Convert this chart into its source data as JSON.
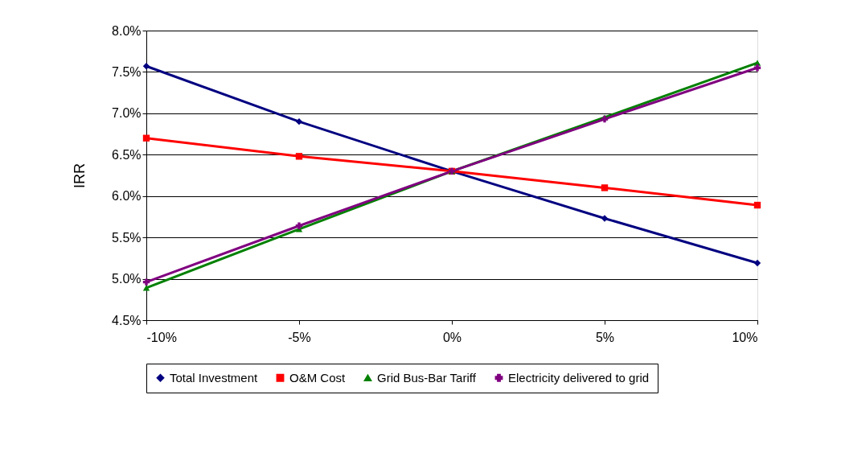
{
  "chart_data": {
    "type": "line",
    "ylabel": "IRR",
    "categories": [
      "-10%",
      "-5%",
      "0%",
      "5%",
      "10%"
    ],
    "ylim": [
      4.5,
      8.0
    ],
    "yticks": [
      {
        "value": 4.5,
        "label": "4.5%"
      },
      {
        "value": 5.0,
        "label": "5.0%"
      },
      {
        "value": 5.5,
        "label": "5.5%"
      },
      {
        "value": 6.0,
        "label": "6.0%"
      },
      {
        "value": 6.5,
        "label": "6.5%"
      },
      {
        "value": 7.0,
        "label": "7.0%"
      },
      {
        "value": 7.5,
        "label": "7.5%"
      },
      {
        "value": 8.0,
        "label": "8.0%"
      }
    ],
    "grid": "y",
    "legend": "bottom",
    "series": [
      {
        "name": "Total Investment",
        "color": "#000080",
        "marker": "diamond",
        "values": [
          7.57,
          6.9,
          6.3,
          5.73,
          5.19
        ]
      },
      {
        "name": "O&M Cost",
        "color": "#ff0000",
        "marker": "square",
        "values": [
          6.7,
          6.48,
          6.3,
          6.1,
          5.89
        ]
      },
      {
        "name": "Grid Bus-Bar Tariff",
        "color": "#008000",
        "marker": "triangle",
        "values": [
          4.89,
          5.6,
          6.3,
          6.95,
          7.61
        ]
      },
      {
        "name": "Electricity delivered to grid",
        "color": "#800080",
        "marker": "cross",
        "values": [
          4.96,
          5.64,
          6.3,
          6.93,
          7.55
        ]
      }
    ]
  }
}
